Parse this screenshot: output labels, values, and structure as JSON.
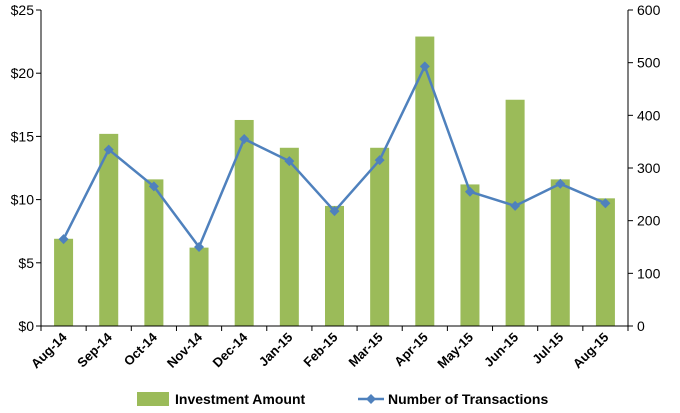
{
  "chart_data": {
    "type": "bar",
    "categories": [
      "Aug-14",
      "Sep-14",
      "Oct-14",
      "Nov-14",
      "Dec-14",
      "Jan-15",
      "Feb-15",
      "Mar-15",
      "Apr-15",
      "May-15",
      "Jun-15",
      "Jul-15",
      "Aug-15"
    ],
    "series": [
      {
        "name": "Investment Amount",
        "type": "bar",
        "axis": "left",
        "color": "#9BBB59",
        "values": [
          6.9,
          15.2,
          11.6,
          6.2,
          16.3,
          14.1,
          9.5,
          14.1,
          22.9,
          11.2,
          17.9,
          11.6,
          10.1
        ]
      },
      {
        "name": "Number of Transactions",
        "type": "line",
        "axis": "right",
        "color": "#4F81BD",
        "values": [
          165,
          335,
          265,
          150,
          355,
          313,
          218,
          315,
          493,
          255,
          228,
          270,
          233
        ]
      }
    ],
    "y_left": {
      "ylim": [
        0,
        25
      ],
      "ticks": [
        "$0",
        "$5",
        "$10",
        "$15",
        "$20",
        "$25"
      ],
      "tick_values": [
        0,
        5,
        10,
        15,
        20,
        25
      ]
    },
    "y_right": {
      "ylim": [
        0,
        600
      ],
      "ticks": [
        "0",
        "100",
        "200",
        "300",
        "400",
        "500",
        "600"
      ],
      "tick_values": [
        0,
        100,
        200,
        300,
        400,
        500,
        600
      ]
    },
    "grid": false,
    "legend_position": "bottom"
  }
}
